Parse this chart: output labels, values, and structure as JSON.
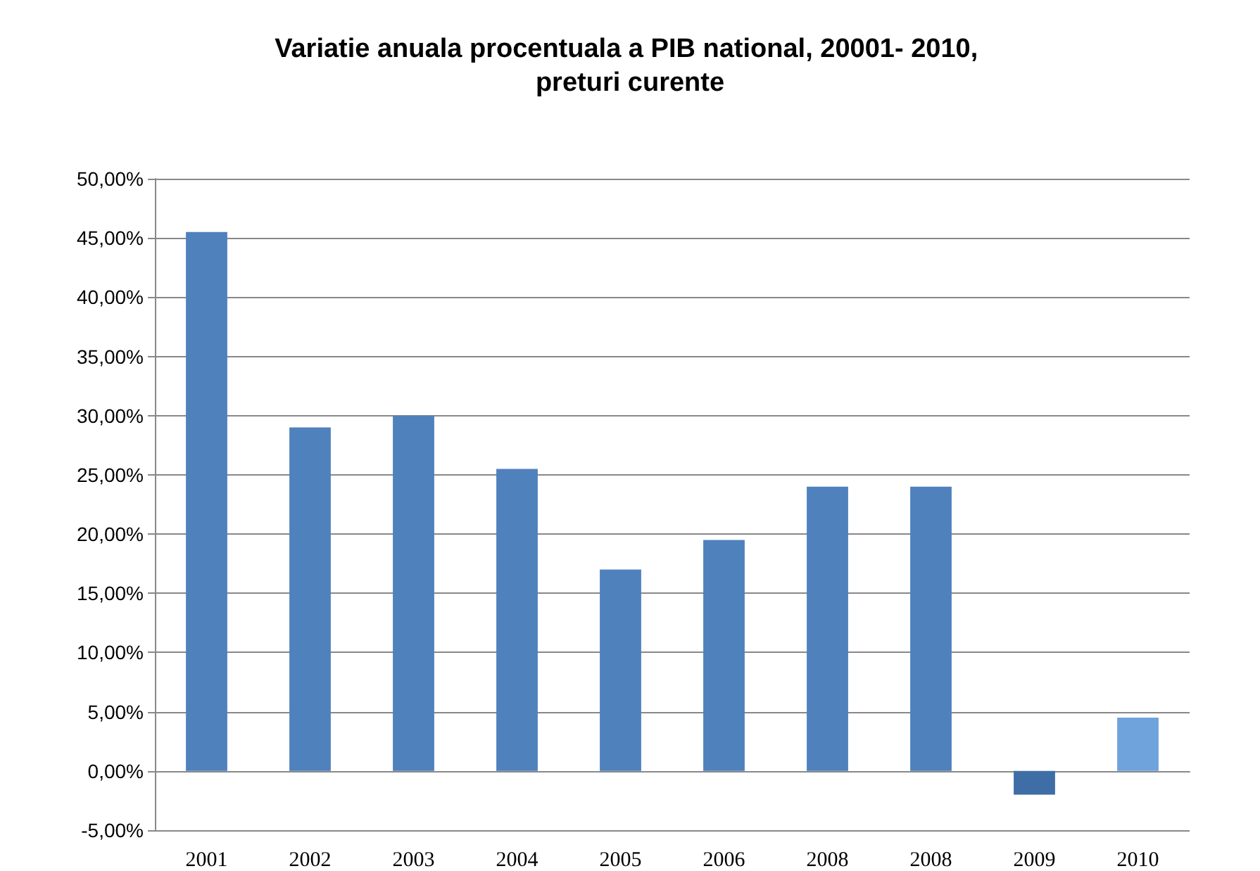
{
  "chart_data": {
    "type": "bar",
    "title": "Variatie anuala procentuala a PIB national, 20001- 2010, preturi curente",
    "categories": [
      "2001",
      "2002",
      "2003",
      "2004",
      "2005",
      "2006",
      "2008",
      "2008",
      "2009",
      "2010"
    ],
    "values": [
      45.5,
      29,
      30,
      25.5,
      17,
      19.5,
      24,
      24,
      -2,
      4.5
    ],
    "colors": [
      "#4f81bd",
      "#4f81bd",
      "#4f81bd",
      "#4f81bd",
      "#4f81bd",
      "#4f81bd",
      "#4f81bd",
      "#4f81bd",
      "#3f6ea6",
      "#6fa3dc"
    ],
    "ylim": [
      -5,
      50
    ],
    "yticks": [
      {
        "value": -5,
        "label": "-5,00%"
      },
      {
        "value": 0,
        "label": "0,00%"
      },
      {
        "value": 5,
        "label": "5,00%"
      },
      {
        "value": 10,
        "label": "10,00%"
      },
      {
        "value": 15,
        "label": "15,00%"
      },
      {
        "value": 20,
        "label": "20,00%"
      },
      {
        "value": 25,
        "label": "25,00%"
      },
      {
        "value": 30,
        "label": "30,00%"
      },
      {
        "value": 35,
        "label": "35,00%"
      },
      {
        "value": 40,
        "label": "40,00%"
      },
      {
        "value": 45,
        "label": "45,00%"
      },
      {
        "value": 50,
        "label": "50,00%"
      }
    ],
    "grid": "y"
  }
}
